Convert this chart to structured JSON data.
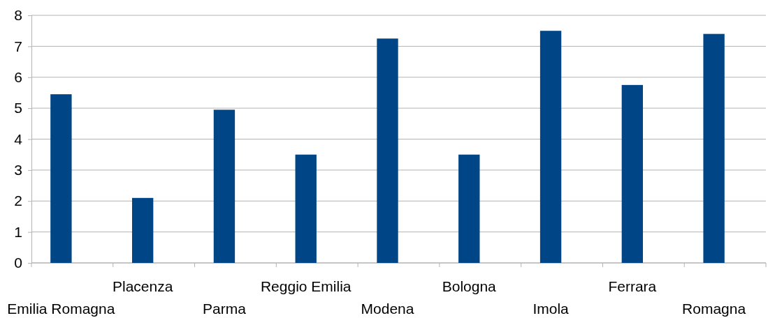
{
  "chart_data": {
    "type": "bar",
    "categories": [
      "Emilia Romagna",
      "Placenza",
      "Parma",
      "Reggio Emilia",
      "Modena",
      "Bologna",
      "Imola",
      "Ferrara",
      "Romagna"
    ],
    "values": [
      5.45,
      2.1,
      4.95,
      3.5,
      7.25,
      3.5,
      7.5,
      5.75,
      7.4
    ],
    "color": "#004586",
    "ylim": [
      0,
      8
    ],
    "yticks": [
      0,
      1,
      2,
      3,
      4,
      5,
      6,
      7,
      8
    ],
    "grid": "y"
  }
}
